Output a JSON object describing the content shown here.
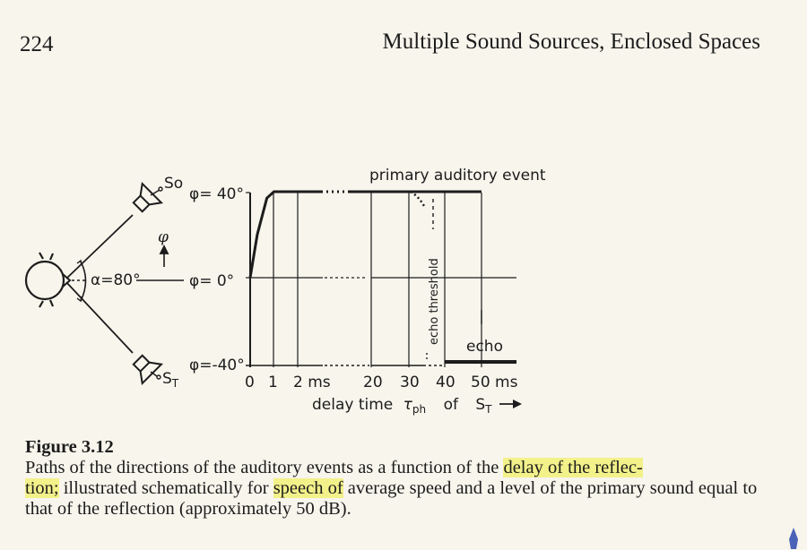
{
  "page": {
    "number": "224",
    "running_head": "Multiple Sound Sources, Enclosed Spaces"
  },
  "figure": {
    "labels": {
      "source_primary": "So",
      "source_reflection": "ST",
      "phi_symbol": "φ",
      "alpha": "α=80°",
      "phi_40": "φ= 40°",
      "phi_0": "φ=  0°",
      "phi_neg40": "φ=-40°",
      "primary_auditory_event": "primary auditory event",
      "echo_threshold": "echo threshold",
      "echo": "echo",
      "axis_caption_prefix": "delay time",
      "tau": "τ",
      "tau_subscript": "ph",
      "of": "of",
      "st_label": "S",
      "st_subscript": "T"
    },
    "x_ticks": [
      "0",
      "1",
      "2 ms",
      "20",
      "30",
      "40",
      "50 ms"
    ],
    "y_ticks": [
      "40°",
      "0°",
      "-40°"
    ],
    "accent_color": "#1c1c1c"
  },
  "chart_data": {
    "type": "line",
    "xlabel": "delay time τph of ST",
    "ylabel": "φ",
    "y_ticks": [
      "40°",
      "0°",
      "-40°"
    ],
    "x_ticks": [
      "0",
      "1",
      "2 ms",
      "20",
      "30",
      "40",
      "50 ms"
    ],
    "series": [
      {
        "name": "primary auditory event",
        "x_ms": [
          0,
          0.3,
          0.7,
          1,
          2,
          20,
          30,
          50
        ],
        "phi_deg": [
          0,
          20,
          37,
          40,
          40,
          40,
          40,
          40
        ]
      },
      {
        "name": "echo",
        "x_ms": [
          40,
          50
        ],
        "phi_deg": [
          -40,
          -40
        ]
      }
    ],
    "echo_threshold_ms": 33
  },
  "caption": {
    "title": "Figure 3.12",
    "seg1": "Paths of the directions of the auditory events as a function of the ",
    "hl1": "delay of the reflec-",
    "hl2": "tion;",
    "seg2": " illustrated schematically for ",
    "hl3": "speech of",
    "seg3": " average speed and a level of the primary sound equal to that of the reflection (approximately 50 dB)."
  }
}
